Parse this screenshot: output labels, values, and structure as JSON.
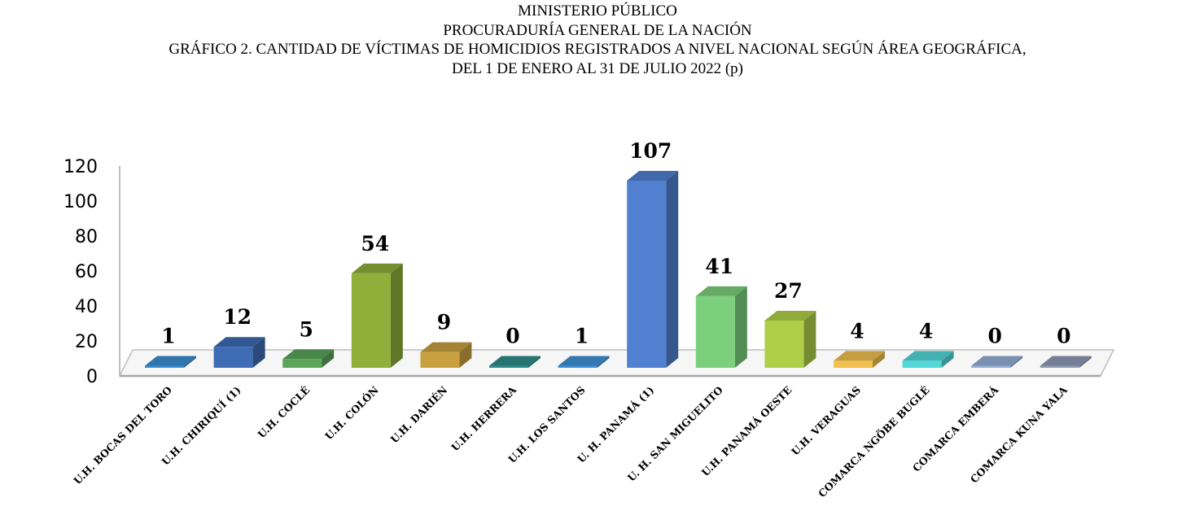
{
  "title_lines": [
    "MINISTERIO PÚBLICO",
    "PROCURADURÍA GENERAL DE LA NACIÓN",
    "GRÁFICO 2. CANTIDAD DE VÍCTIMAS DE HOMICIDIOS REGISTRADOS A NIVEL NACIONAL SEGÚN ÁREA GEOGRÁFICA,",
    "DEL 1 DE ENERO AL 31 DE JULIO 2022 (p)"
  ],
  "chart_data": {
    "type": "bar",
    "style": "3d-column",
    "title": "GRÁFICO 2. CANTIDAD DE VÍCTIMAS DE HOMICIDIOS REGISTRADOS A NIVEL NACIONAL SEGÚN ÁREA GEOGRÁFICA, DEL 1 DE ENERO AL 31 DE JULIO 2022 (p)",
    "categories": [
      "U.H. BOCAS DEL TORO",
      "U.H. CHIRIQUÍ (1)",
      "U.H. COCLÉ",
      "U.H. COLÓN",
      "U.H. DARIÉN",
      "U.H. HERRERA",
      "U.H. LOS SANTOS",
      "U. H. PANAMÁ (1)",
      "U. H. SAN MIGUELITO",
      "U.H. PANAMÁ OESTE",
      "U.H. VERAGUAS",
      "COMARCA NGÖBE BUGLÉ",
      "COMARCA EMBERÁ",
      "COMARCA KUNA YALA"
    ],
    "values": [
      1,
      12,
      5,
      54,
      9,
      0,
      1,
      107,
      41,
      27,
      4,
      4,
      0,
      0
    ],
    "data_labels": [
      "1",
      "12",
      "5",
      "54",
      "9",
      "0",
      "1",
      "107",
      "41",
      "27",
      "4",
      "4",
      "0",
      "0"
    ],
    "colors": [
      "#3b8fd4",
      "#3e6db5",
      "#5aa55a",
      "#8fae3a",
      "#c9a040",
      "#2e8f8a",
      "#3f92d8",
      "#5080cf",
      "#7ccf7c",
      "#afcf48",
      "#f1c04e",
      "#52d8d8",
      "#94b0d8",
      "#8f9cb8"
    ],
    "ylim": [
      0,
      120
    ],
    "yticks": [
      0,
      20,
      40,
      60,
      80,
      100,
      120
    ],
    "ytick_labels": [
      "0",
      "20",
      "40",
      "60",
      "80",
      "100",
      "120"
    ],
    "xlabel": "",
    "ylabel": "",
    "grid": false,
    "legend": "none"
  }
}
